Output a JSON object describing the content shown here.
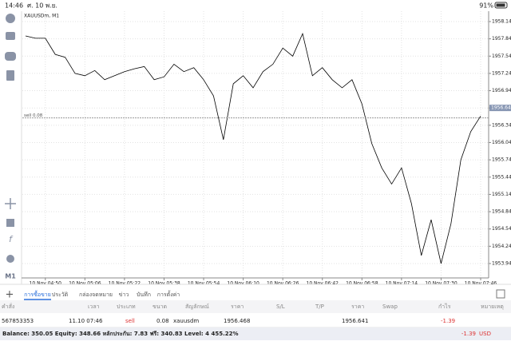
{
  "status_bar": {
    "time": "14:46",
    "date": "ศ. 10 พ.ย.",
    "battery": "91%"
  },
  "toolbar": {
    "timeframe": "M1"
  },
  "chart_data": {
    "type": "line",
    "title": "XAUUSDm, M1",
    "categories": [
      null,
      null,
      "10 Nov 04:50",
      null,
      null,
      null,
      "10 Nov 05:06",
      null,
      null,
      null,
      "10 Nov 05:22",
      null,
      null,
      null,
      "10 Nov 05:38",
      null,
      null,
      null,
      "10 Nov 05:54",
      null,
      null,
      null,
      "10 Nov 06:10",
      null,
      null,
      null,
      "10 Nov 06:26",
      null,
      null,
      null,
      "10 Nov 06:42",
      null,
      null,
      null,
      "10 Nov 06:58",
      null,
      null,
      null,
      "10 Nov 07:14",
      null,
      null,
      null,
      "10 Nov 07:30",
      null,
      null,
      null,
      "10 Nov 07:46"
    ],
    "values": [
      1957.89,
      1957.85,
      1957.85,
      1957.57,
      1957.52,
      1957.24,
      1957.2,
      1957.29,
      1957.13,
      1957.2,
      1957.27,
      1957.32,
      1957.36,
      1957.13,
      1957.18,
      1957.4,
      1957.27,
      1957.34,
      1957.13,
      1956.85,
      1956.09,
      1957.06,
      1957.2,
      1956.99,
      1957.27,
      1957.4,
      1957.68,
      1957.54,
      1957.93,
      1957.2,
      1957.34,
      1957.13,
      1956.99,
      1957.13,
      1956.71,
      1956.02,
      1955.6,
      1955.32,
      1955.6,
      1954.98,
      1954.08,
      1954.7,
      1953.94,
      1954.63,
      1955.74,
      1956.23,
      1956.5
    ],
    "color": "#000000",
    "ylim": [
      1953.69,
      1958.32
    ],
    "yticks": [
      {
        "value": 1958.14,
        "label": "1958.140"
      },
      {
        "value": 1957.84,
        "label": "1957.840"
      },
      {
        "value": 1957.54,
        "label": "1957.540"
      },
      {
        "value": 1957.24,
        "label": "1957.240"
      },
      {
        "value": 1956.94,
        "label": "1956.940"
      },
      {
        "value": 1956.64,
        "label": "1956.640"
      },
      {
        "value": 1956.34,
        "label": "1956.340"
      },
      {
        "value": 1956.04,
        "label": "1956.040"
      },
      {
        "value": 1955.74,
        "label": "1955.740"
      },
      {
        "value": 1955.44,
        "label": "1955.440"
      },
      {
        "value": 1955.14,
        "label": "1955.140"
      },
      {
        "value": 1954.84,
        "label": "1954.840"
      },
      {
        "value": 1954.54,
        "label": "1954.540"
      },
      {
        "value": 1954.24,
        "label": "1954.240"
      },
      {
        "value": 1953.94,
        "label": "1953.940"
      }
    ],
    "grid": true,
    "order_line": {
      "label": "sell 0.08",
      "value": 1956.468
    },
    "current_price": {
      "value": 1956.641
    }
  },
  "tabs": [
    "การซื้อขาย",
    "ประวัติ",
    "กล่องจดหมาย",
    "ข่าว",
    "บันทึก",
    "การตั้งค่า"
  ],
  "table": {
    "headers": [
      "คำสั่ง",
      "เวลา",
      "ประเภท",
      "ขนาด",
      "สัญลักษณ์",
      "ราคา",
      "S/L",
      "T/P",
      "ราคา",
      "Swap",
      "กำไร",
      "หมายเหตุ"
    ],
    "row": {
      "order": "567853353",
      "time": "11.10 07:46",
      "type": "sell",
      "volume": "0.08",
      "symbol": "xauusdm",
      "open_price": "1956.468",
      "price": "1956.641",
      "profit": "-1.39"
    }
  },
  "footer": {
    "summary": "Balance: 350.05 Equity: 348.66 หลักประกัน: 7.83 ฟรี: 340.83 Level: 4 455.22%",
    "profit": "-1.39",
    "currency": "USD"
  }
}
